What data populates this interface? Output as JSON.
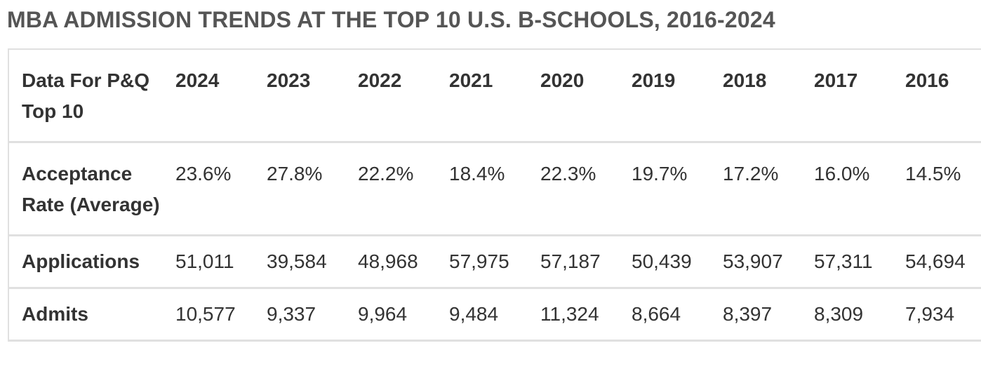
{
  "title": "MBA ADMISSION TRENDS AT THE TOP 10 U.S. B-SCHOOLS, 2016-2024",
  "table": {
    "header": {
      "label": "Data For P&Q Top 10",
      "years": [
        "2024",
        "2023",
        "2022",
        "2021",
        "2020",
        "2019",
        "2018",
        "2017",
        "2016"
      ]
    },
    "rows": [
      {
        "label": "Acceptance Rate (Average)",
        "values": [
          "23.6%",
          "27.8%",
          "22.2%",
          "18.4%",
          "22.3%",
          "19.7%",
          "17.2%",
          "16.0%",
          "14.5%"
        ]
      },
      {
        "label": "Applications",
        "values": [
          "51,011",
          "39,584",
          "48,968",
          "57,975",
          "57,187",
          "50,439",
          "53,907",
          "57,311",
          "54,694"
        ]
      },
      {
        "label": "Admits",
        "values": [
          "10,577",
          "9,337",
          "9,964",
          "9,484",
          "11,324",
          "8,664",
          "8,397",
          "8,309",
          "7,934"
        ]
      }
    ]
  }
}
